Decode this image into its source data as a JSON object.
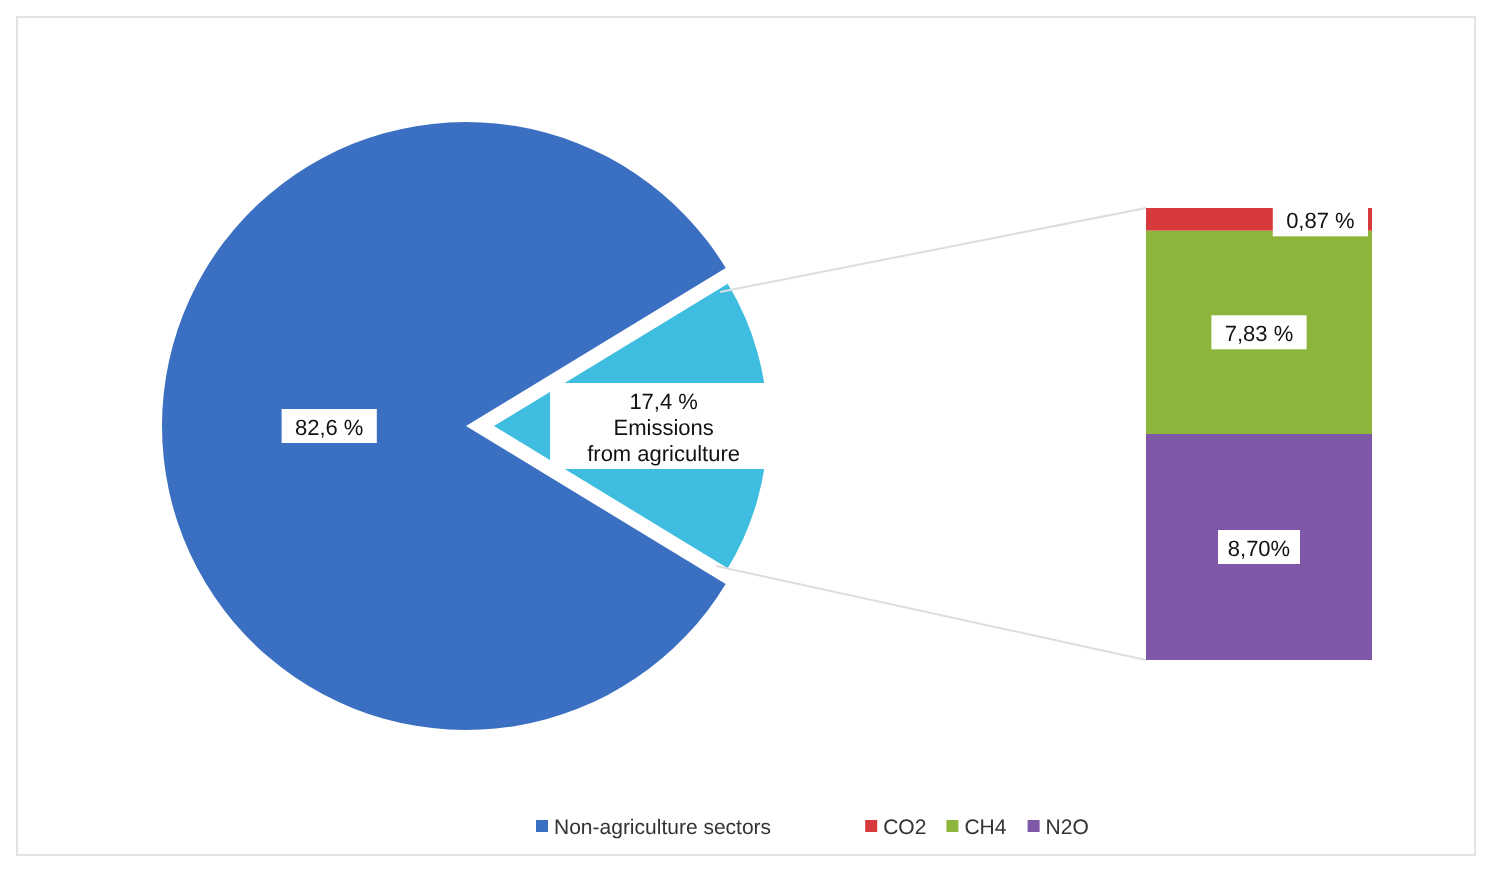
{
  "chart_data": [
    {
      "type": "pie",
      "categories": [
        "Non-agriculture sectors",
        null
      ],
      "values": [
        82.6,
        17.4
      ],
      "colors": [
        "#3b6fc1",
        "#3fbde0"
      ],
      "value_labels": [
        "82,6 %",
        "17,4 %"
      ],
      "annotations": [
        "Emissions from agriculture"
      ],
      "legend": "bottom"
    },
    {
      "type": "bar",
      "stacked": true,
      "categories": [
        null
      ],
      "series": [
        {
          "name": "N2O",
          "color": "#7e57a6",
          "values": [
            8.7
          ],
          "value_labels": [
            "8,70%"
          ]
        },
        {
          "name": "CH4",
          "color": "#8db53c",
          "values": [
            7.83
          ],
          "value_labels": [
            "7,83 %"
          ]
        },
        {
          "name": "CO2",
          "color": "#d63a3a",
          "values": [
            0.87
          ],
          "value_labels": [
            "0,87 %"
          ]
        }
      ],
      "legend": "bottom"
    }
  ]
}
